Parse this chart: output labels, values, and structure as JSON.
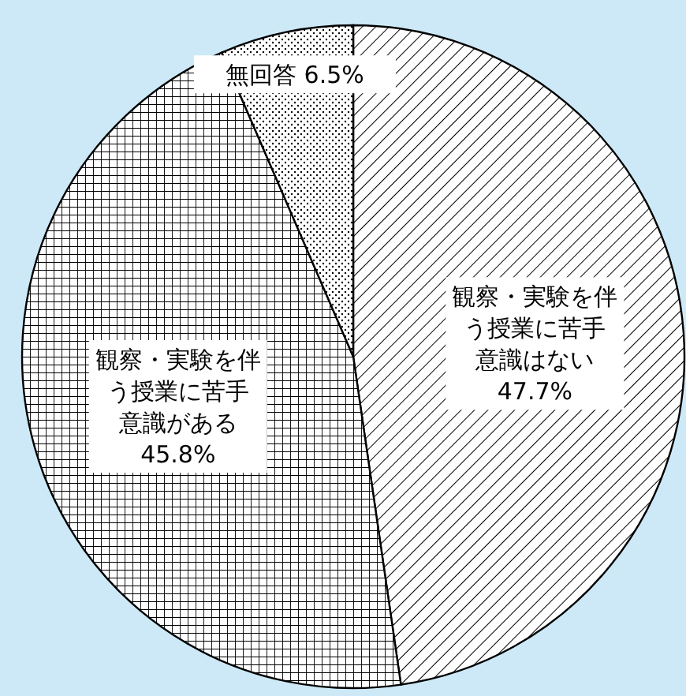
{
  "chart_data": {
    "type": "pie",
    "categories": [
      "観察・実験を伴う授業に苦手意識はない",
      "観察・実験を伴う授業に苦手意識がある",
      "無回答"
    ],
    "values": [
      47.7,
      45.8,
      6.5
    ],
    "value_labels": [
      "47.7%",
      "45.8%",
      "6.5%"
    ]
  }
}
